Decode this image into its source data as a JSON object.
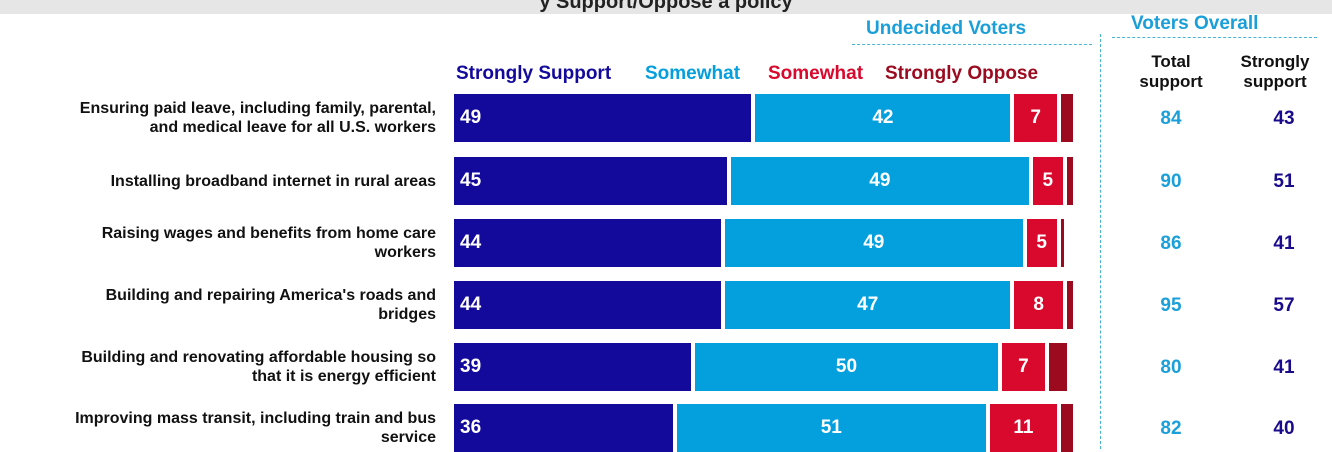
{
  "title": "y Support/Oppose a policy",
  "groups": {
    "undecided": "Undecided Voters",
    "overall": "Voters Overall"
  },
  "legend": {
    "strongly_support": "Strongly Support",
    "somewhat_support": "Somewhat",
    "somewhat_oppose": "Somewhat",
    "strongly_oppose": "Strongly Oppose"
  },
  "columns": {
    "total_support": [
      "Total",
      "support"
    ],
    "strongly_support": [
      "Strongly",
      "support"
    ]
  },
  "colors": {
    "strongly_support": "#130a9c",
    "somewhat_support": "#049fdd",
    "somewhat_oppose": "#d9082d",
    "strongly_oppose": "#9b0a1e",
    "total_support_text": "#1b9fd9",
    "strongly_support_text": "#1a0b8c"
  },
  "chart_data": {
    "type": "bar",
    "stacked": true,
    "orientation": "horizontal",
    "categories": [
      [
        "Ensuring paid leave, including family, parental,",
        "and medical leave for all U.S. workers"
      ],
      [
        "Installing broadband internet in rural areas"
      ],
      [
        "Raising wages and benefits from home care",
        "workers"
      ],
      [
        "Building and repairing America's roads and",
        "bridges"
      ],
      [
        "Building and renovating affordable housing so",
        "that it is energy efficient"
      ],
      [
        "Improving mass transit, including train and bus",
        "service"
      ]
    ],
    "series": [
      {
        "name": "Strongly Support",
        "values": [
          49,
          45,
          44,
          44,
          39,
          36
        ]
      },
      {
        "name": "Somewhat",
        "values": [
          42,
          49,
          49,
          47,
          50,
          51
        ]
      },
      {
        "name": "Somewhat",
        "values": [
          7,
          5,
          5,
          8,
          7,
          11
        ]
      },
      {
        "name": "Strongly Oppose",
        "values": [
          2,
          1,
          0.5,
          1,
          3,
          2
        ]
      }
    ],
    "total_support": [
      84,
      90,
      86,
      95,
      80,
      82
    ],
    "overall_strongly_support": [
      43,
      51,
      41,
      57,
      41,
      40
    ]
  }
}
